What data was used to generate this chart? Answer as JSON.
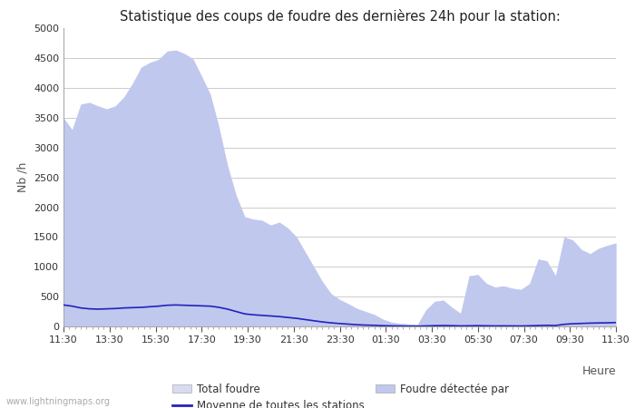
{
  "title": "Statistique des coups de foudre des dernières 24h pour la station:",
  "ylabel": "Nb /h",
  "xlabel": "Heure",
  "watermark": "www.lightningmaps.org",
  "ylim": [
    0,
    5000
  ],
  "yticks": [
    0,
    500,
    1000,
    1500,
    2000,
    2500,
    3000,
    3500,
    4000,
    4500,
    5000
  ],
  "x_labels": [
    "11:30",
    "13:30",
    "15:30",
    "17:30",
    "19:30",
    "21:30",
    "23:30",
    "01:30",
    "03:30",
    "05:30",
    "07:30",
    "09:30",
    "11:30"
  ],
  "total_foudre_color": "#d8dcf0",
  "foudre_detectee_color": "#c0c8ee",
  "moyenne_color": "#2222bb",
  "background_color": "#ffffff",
  "grid_color": "#cccccc",
  "total_foudre": [
    3500,
    3300,
    3730,
    3760,
    3700,
    3650,
    3700,
    3850,
    4080,
    4350,
    4430,
    4480,
    4620,
    4640,
    4580,
    4490,
    4200,
    3900,
    3350,
    2700,
    2200,
    1840,
    1800,
    1780,
    1700,
    1750,
    1650,
    1500,
    1250,
    1000,
    750,
    550,
    450,
    380,
    300,
    250,
    200,
    120,
    70,
    50,
    40,
    30,
    280,
    420,
    440,
    320,
    220,
    850,
    870,
    720,
    660,
    680,
    640,
    620,
    720,
    1130,
    1100,
    850,
    1500,
    1450,
    1290,
    1220,
    1310,
    1360,
    1400
  ],
  "foudre_detectee": [
    3500,
    3300,
    3730,
    3760,
    3700,
    3650,
    3700,
    3850,
    4080,
    4350,
    4430,
    4480,
    4620,
    4640,
    4580,
    4490,
    4200,
    3900,
    3350,
    2700,
    2200,
    1840,
    1800,
    1780,
    1700,
    1750,
    1650,
    1500,
    1250,
    1000,
    750,
    550,
    450,
    380,
    300,
    250,
    200,
    120,
    70,
    50,
    40,
    30,
    280,
    420,
    440,
    320,
    220,
    850,
    870,
    720,
    660,
    680,
    640,
    620,
    720,
    1130,
    1100,
    850,
    1500,
    1450,
    1290,
    1220,
    1310,
    1360,
    1400
  ],
  "moyenne": [
    360,
    340,
    310,
    295,
    290,
    295,
    300,
    310,
    315,
    320,
    330,
    340,
    355,
    360,
    355,
    350,
    345,
    340,
    320,
    290,
    250,
    210,
    195,
    185,
    175,
    165,
    150,
    135,
    115,
    95,
    75,
    60,
    48,
    38,
    28,
    22,
    18,
    12,
    9,
    7,
    5,
    4,
    8,
    12,
    14,
    12,
    8,
    10,
    12,
    10,
    8,
    9,
    8,
    7,
    10,
    15,
    18,
    15,
    35,
    45,
    50,
    55,
    58,
    60,
    65
  ]
}
